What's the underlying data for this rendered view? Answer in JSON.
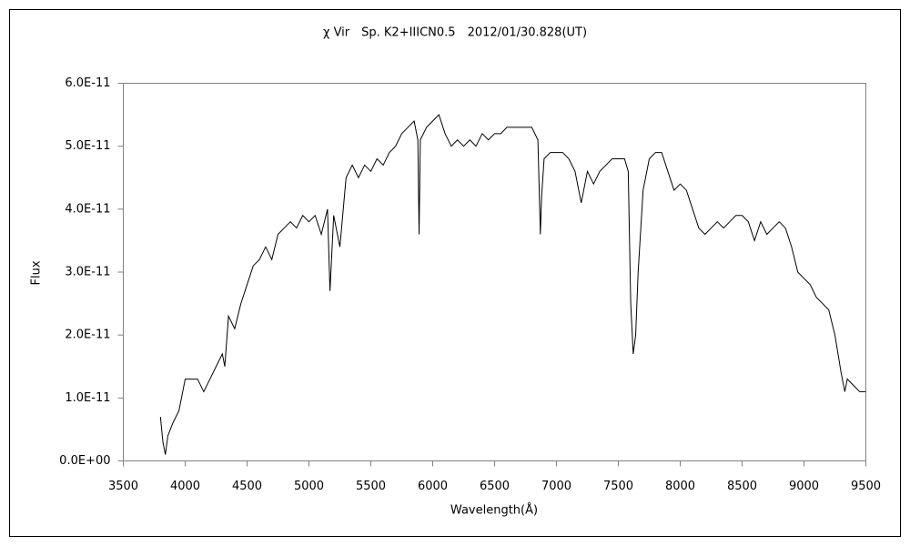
{
  "chart_data": {
    "type": "line",
    "title": "χ Vir　Sp. K2+IIICN0.5　2012/01/30.828(UT)",
    "x_label": "Wavelength(Å)",
    "y_label": "Flux",
    "xlim": [
      3500,
      9500
    ],
    "xticks": [
      3500,
      4000,
      4500,
      5000,
      5500,
      6000,
      6500,
      7000,
      7500,
      8000,
      8500,
      9000,
      9500
    ],
    "ylim": [
      0,
      6e-11
    ],
    "yticks": [
      {
        "value": 0,
        "label": "0.0E+00"
      },
      {
        "value": 1e-11,
        "label": "1.0E-11"
      },
      {
        "value": 2e-11,
        "label": "2.0E-11"
      },
      {
        "value": 3e-11,
        "label": "3.0E-11"
      },
      {
        "value": 4e-11,
        "label": "4.0E-11"
      },
      {
        "value": 5e-11,
        "label": "5.0E-11"
      },
      {
        "value": 6e-11,
        "label": "6.0E-11"
      }
    ],
    "grid": false,
    "series": [
      {
        "color": "#000000",
        "x": [
          3800,
          3820,
          3840,
          3860,
          3880,
          3900,
          3950,
          4000,
          4050,
          4100,
          4150,
          4200,
          4250,
          4300,
          4320,
          4350,
          4400,
          4450,
          4500,
          4550,
          4600,
          4650,
          4700,
          4750,
          4800,
          4850,
          4900,
          4950,
          5000,
          5050,
          5100,
          5150,
          5170,
          5200,
          5250,
          5300,
          5350,
          5400,
          5450,
          5500,
          5550,
          5600,
          5650,
          5700,
          5750,
          5800,
          5850,
          5880,
          5890,
          5900,
          5950,
          6000,
          6050,
          6100,
          6150,
          6200,
          6250,
          6300,
          6350,
          6400,
          6450,
          6500,
          6550,
          6600,
          6650,
          6700,
          6750,
          6800,
          6850,
          6870,
          6880,
          6900,
          6950,
          7000,
          7050,
          7100,
          7150,
          7200,
          7250,
          7300,
          7350,
          7400,
          7450,
          7500,
          7550,
          7580,
          7600,
          7620,
          7640,
          7660,
          7700,
          7750,
          7800,
          7850,
          7900,
          7950,
          8000,
          8050,
          8100,
          8150,
          8200,
          8250,
          8300,
          8350,
          8400,
          8450,
          8500,
          8550,
          8600,
          8650,
          8700,
          8750,
          8800,
          8850,
          8900,
          8950,
          9000,
          9050,
          9100,
          9150,
          9200,
          9250,
          9300,
          9330,
          9350,
          9400,
          9450,
          9500
        ],
        "values": [
          7e-12,
          3e-12,
          1e-12,
          4e-12,
          5e-12,
          6e-12,
          8e-12,
          1.3e-11,
          1.3e-11,
          1.3e-11,
          1.1e-11,
          1.3e-11,
          1.5e-11,
          1.7e-11,
          1.5e-11,
          2.3e-11,
          2.1e-11,
          2.5e-11,
          2.8e-11,
          3.1e-11,
          3.2e-11,
          3.4e-11,
          3.2e-11,
          3.6e-11,
          3.7e-11,
          3.8e-11,
          3.7e-11,
          3.9e-11,
          3.8e-11,
          3.9e-11,
          3.6e-11,
          4e-11,
          2.7e-11,
          3.9e-11,
          3.4e-11,
          4.5e-11,
          4.7e-11,
          4.5e-11,
          4.7e-11,
          4.6e-11,
          4.8e-11,
          4.7e-11,
          4.9e-11,
          5e-11,
          5.2e-11,
          5.3e-11,
          5.4e-11,
          5.1e-11,
          3.6e-11,
          5.1e-11,
          5.3e-11,
          5.4e-11,
          5.5e-11,
          5.2e-11,
          5e-11,
          5.1e-11,
          5e-11,
          5.1e-11,
          5e-11,
          5.2e-11,
          5.1e-11,
          5.2e-11,
          5.2e-11,
          5.3e-11,
          5.3e-11,
          5.3e-11,
          5.3e-11,
          5.3e-11,
          5.1e-11,
          3.6e-11,
          4.2e-11,
          4.8e-11,
          4.9e-11,
          4.9e-11,
          4.9e-11,
          4.8e-11,
          4.6e-11,
          4.1e-11,
          4.6e-11,
          4.4e-11,
          4.6e-11,
          4.7e-11,
          4.8e-11,
          4.8e-11,
          4.8e-11,
          4.6e-11,
          2.5e-11,
          1.7e-11,
          2e-11,
          3e-11,
          4.3e-11,
          4.8e-11,
          4.9e-11,
          4.9e-11,
          4.6e-11,
          4.3e-11,
          4.4e-11,
          4.3e-11,
          4e-11,
          3.7e-11,
          3.6e-11,
          3.7e-11,
          3.8e-11,
          3.7e-11,
          3.8e-11,
          3.9e-11,
          3.9e-11,
          3.8e-11,
          3.5e-11,
          3.8e-11,
          3.6e-11,
          3.7e-11,
          3.8e-11,
          3.7e-11,
          3.4e-11,
          3e-11,
          2.9e-11,
          2.8e-11,
          2.6e-11,
          2.5e-11,
          2.4e-11,
          2e-11,
          1.4e-11,
          1.1e-11,
          1.3e-11,
          1.2e-11,
          1.1e-11,
          1.1e-11
        ]
      }
    ]
  }
}
